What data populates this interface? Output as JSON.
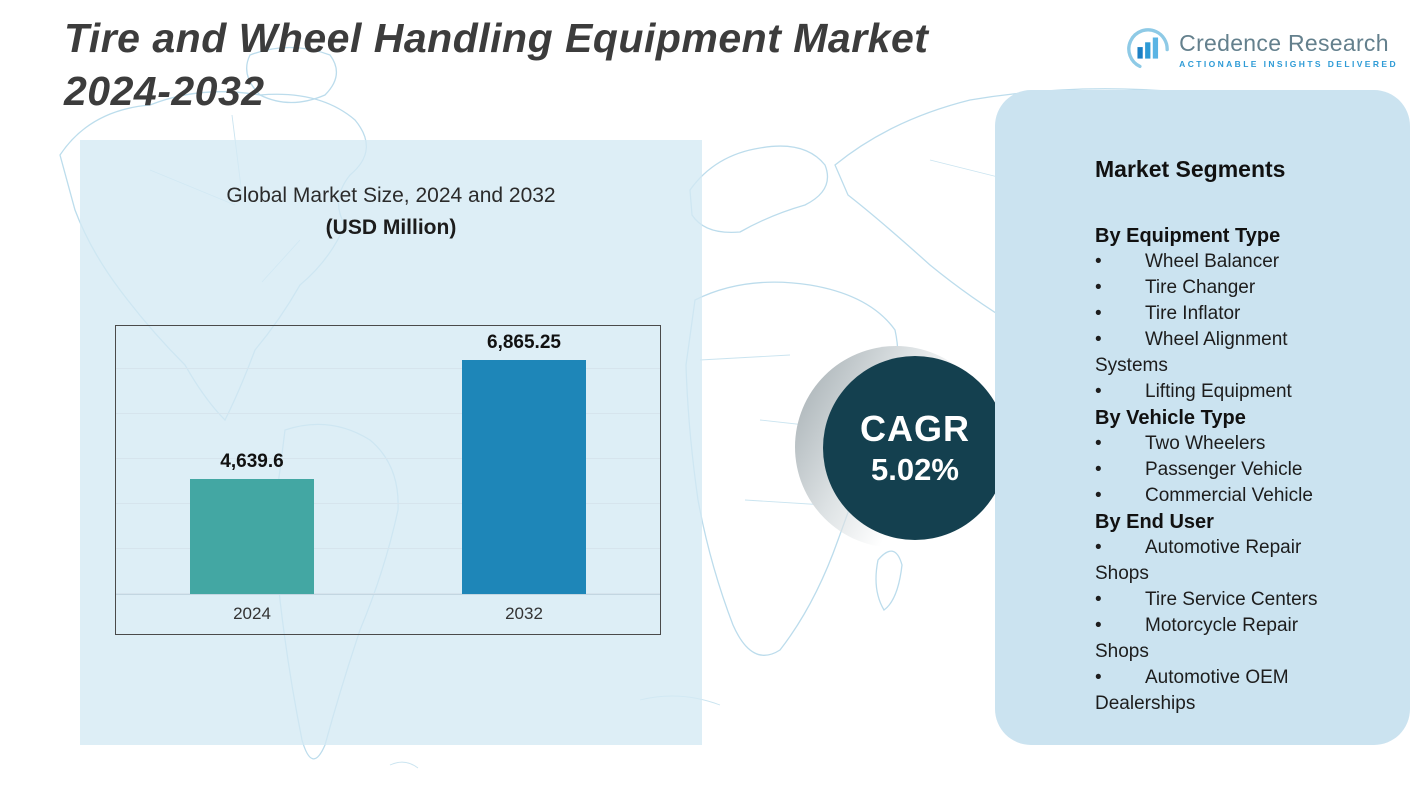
{
  "header": {
    "title_line1": "Tire and Wheel Handling Equipment Market",
    "title_line2": "2024-2032"
  },
  "logo": {
    "name": "Credence Research",
    "tagline": "Actionable Insights Delivered"
  },
  "chart": {
    "title": "Global Market Size, 2024 and 2032",
    "subtitle": "(USD Million)"
  },
  "chart_data": {
    "type": "bar",
    "title": "Global Market Size, 2024 and 2032",
    "unit": "USD Million",
    "categories": [
      "2024",
      "2032"
    ],
    "values": [
      4639.6,
      6865.25
    ],
    "value_labels": [
      "4,639.6",
      "6,865.25"
    ],
    "colors": [
      "#43a7a3",
      "#1e86b8"
    ],
    "ylim": [
      2500,
      7500
    ],
    "grid": true,
    "legend": false
  },
  "cagr": {
    "label": "CAGR",
    "value": "5.02%"
  },
  "segments": {
    "heading": "Market Segments",
    "groups": [
      {
        "title": "By Equipment Type",
        "items": [
          "Wheel Balancer",
          "Tire Changer",
          "Tire Inflator",
          "Wheel Alignment Systems",
          "Lifting Equipment"
        ]
      },
      {
        "title": "By Vehicle Type",
        "items": [
          "Two Wheelers",
          "Passenger Vehicle",
          "Commercial Vehicle"
        ]
      },
      {
        "title": "By End User",
        "items": [
          "Automotive Repair Shops",
          "Tire Service Centers",
          "Motorcycle Repair Shops",
          "Automotive OEM Dealerships"
        ]
      }
    ]
  },
  "theme": {
    "circle_color": "#14404f",
    "panel_color": "#cbe3f0",
    "chart_panel_color": "#d4e9f4",
    "map_line_color": "#b5d9ea",
    "bar_2024_color": "#43a7a3",
    "bar_2032_color": "#1e86b8"
  }
}
